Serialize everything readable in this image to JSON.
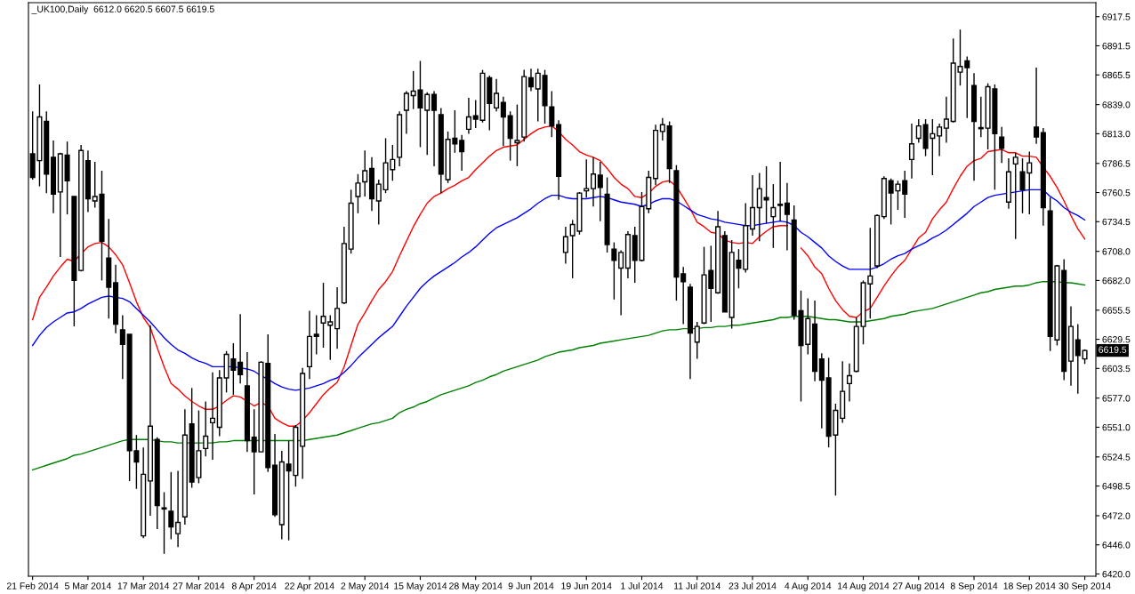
{
  "chart_data": {
    "type": "candlestick",
    "title": "_UK100,Daily  6612.0 6620.5 6607.5 6619.5",
    "categories": [
      "21 Feb 2014",
      null,
      null,
      null,
      null,
      null,
      null,
      null,
      "5 Mar 2014",
      null,
      null,
      null,
      null,
      null,
      null,
      null,
      "17 Mar 2014",
      null,
      null,
      null,
      null,
      null,
      null,
      null,
      "27 Mar 2014",
      null,
      null,
      null,
      null,
      null,
      null,
      null,
      "8 Apr 2014",
      null,
      null,
      null,
      null,
      null,
      null,
      null,
      "22 Apr 2014",
      null,
      null,
      null,
      null,
      null,
      null,
      null,
      "2 May 2014",
      null,
      null,
      null,
      null,
      null,
      null,
      null,
      "15 May 2014",
      null,
      null,
      null,
      null,
      null,
      null,
      null,
      "28 May 2014",
      null,
      null,
      null,
      null,
      null,
      null,
      null,
      "9 Jun 2014",
      null,
      null,
      null,
      null,
      null,
      null,
      null,
      "19 Jun 2014",
      null,
      null,
      null,
      null,
      null,
      null,
      null,
      "1 Jul 2014",
      null,
      null,
      null,
      null,
      null,
      null,
      null,
      "11 Jul 2014",
      null,
      null,
      null,
      null,
      null,
      null,
      null,
      "23 Jul 2014",
      null,
      null,
      null,
      null,
      null,
      null,
      null,
      "4 Aug 2014",
      null,
      null,
      null,
      null,
      null,
      null,
      null,
      "14 Aug 2014",
      null,
      null,
      null,
      null,
      null,
      null,
      null,
      "27 Aug 2014",
      null,
      null,
      null,
      null,
      null,
      null,
      null,
      "8 Sep 2014",
      null,
      null,
      null,
      null,
      null,
      null,
      null,
      "18 Sep 2014",
      null,
      null,
      null,
      null,
      null,
      null,
      null,
      "30 Sep 2014"
    ],
    "ohlc": [
      [
        6795,
        6833,
        6772,
        6774
      ],
      [
        6789,
        6857,
        6766,
        6828
      ],
      [
        6824,
        6833,
        6760,
        6777
      ],
      [
        6792,
        6807,
        6742,
        6759
      ],
      [
        6761,
        6796,
        6703,
        6795
      ],
      [
        6794,
        6806,
        6741,
        6771
      ],
      [
        6757,
        6757,
        6641,
        6682
      ],
      [
        6691,
        6803,
        6690,
        6798
      ],
      [
        6789,
        6798,
        6743,
        6755
      ],
      [
        6753,
        6788,
        6747,
        6757
      ],
      [
        6759,
        6780,
        6682,
        6717
      ],
      [
        6702,
        6737,
        6648,
        6676
      ],
      [
        6680,
        6696,
        6635,
        6643
      ],
      [
        6638,
        6651,
        6594,
        6625
      ],
      [
        6634,
        6634,
        6503,
        6530
      ],
      [
        6530,
        6544,
        6496,
        6520
      ],
      [
        6454,
        6533,
        6452,
        6509
      ],
      [
        6503,
        6642,
        6472,
        6552
      ],
      [
        6540,
        6542,
        6460,
        6481
      ],
      [
        6478,
        6493,
        6438,
        6479
      ],
      [
        6476,
        6511,
        6451,
        6462
      ],
      [
        6456,
        6512,
        6444,
        6466
      ],
      [
        6471,
        6567,
        6464,
        6544
      ],
      [
        6554,
        6586,
        6497,
        6502
      ],
      [
        6506,
        6566,
        6501,
        6530
      ],
      [
        6532,
        6574,
        6525,
        6543
      ],
      [
        6555,
        6600,
        6522,
        6559
      ],
      [
        6551,
        6602,
        6543,
        6595
      ],
      [
        6595,
        6619,
        6582,
        6616
      ],
      [
        6612,
        6626,
        6580,
        6602
      ],
      [
        6609,
        6652,
        6590,
        6598
      ],
      [
        6588,
        6618,
        6529,
        6539
      ],
      [
        6542,
        6567,
        6491,
        6529
      ],
      [
        6529,
        6610,
        6529,
        6609
      ],
      [
        6608,
        6634,
        6511,
        6515
      ],
      [
        6517,
        6545,
        6471,
        6473
      ],
      [
        6464,
        6530,
        6451,
        6520
      ],
      [
        6518,
        6539,
        6450,
        6512
      ],
      [
        6508,
        6553,
        6498,
        6551
      ],
      [
        6534,
        6604,
        6505,
        6599
      ],
      [
        6605,
        6655,
        6594,
        6632
      ],
      [
        6634,
        6651,
        6616,
        6632
      ],
      [
        6644,
        6680,
        6622,
        6650
      ],
      [
        6642,
        6651,
        6611,
        6645
      ],
      [
        6639,
        6676,
        6621,
        6657
      ],
      [
        6662,
        6730,
        6661,
        6715
      ],
      [
        6710,
        6763,
        6706,
        6751
      ],
      [
        6757,
        6777,
        6742,
        6769
      ],
      [
        6770,
        6798,
        6757,
        6780
      ],
      [
        6782,
        6792,
        6744,
        6755
      ],
      [
        6753,
        6772,
        6732,
        6768
      ],
      [
        6763,
        6809,
        6760,
        6787
      ],
      [
        6781,
        6803,
        6771,
        6790
      ],
      [
        6792,
        6833,
        6784,
        6830
      ],
      [
        6834,
        6851,
        6813,
        6849
      ],
      [
        6847,
        6869,
        6835,
        6851
      ],
      [
        6852,
        6878,
        6801,
        6836
      ],
      [
        6834,
        6850,
        6794,
        6848
      ],
      [
        6848,
        6851,
        6784,
        6834
      ],
      [
        6830,
        6836,
        6760,
        6777
      ],
      [
        6772,
        6815,
        6769,
        6808
      ],
      [
        6809,
        6834,
        6796,
        6804
      ],
      [
        6807,
        6812,
        6780,
        6797
      ],
      [
        6817,
        6845,
        6813,
        6828
      ],
      [
        6829,
        6843,
        6818,
        6826
      ],
      [
        6825,
        6870,
        6823,
        6867
      ],
      [
        6863,
        6865,
        6816,
        6840
      ],
      [
        6836,
        6862,
        6833,
        6849
      ],
      [
        6841,
        6846,
        6802,
        6828
      ],
      [
        6829,
        6833,
        6789,
        6809
      ],
      [
        6805,
        6839,
        6784,
        6807
      ],
      [
        6810,
        6870,
        6806,
        6864
      ],
      [
        6863,
        6871,
        6851,
        6855
      ],
      [
        6853,
        6871,
        6824,
        6867
      ],
      [
        6865,
        6870,
        6822,
        6838
      ],
      [
        6837,
        6851,
        6810,
        6820
      ],
      [
        6821,
        6825,
        6754,
        6775
      ],
      [
        6707,
        6730,
        6697,
        6721
      ],
      [
        6722,
        6736,
        6684,
        6732
      ],
      [
        6726,
        6761,
        6723,
        6760
      ],
      [
        6762,
        6790,
        6756,
        6764
      ],
      [
        6764,
        6792,
        6748,
        6777
      ],
      [
        6776,
        6788,
        6735,
        6765
      ],
      [
        6759,
        6774,
        6707,
        6714
      ],
      [
        6710,
        6716,
        6665,
        6700
      ],
      [
        6693,
        6709,
        6651,
        6707
      ],
      [
        6693,
        6726,
        6684,
        6723
      ],
      [
        6722,
        6730,
        6680,
        6700
      ],
      [
        6700,
        6761,
        6699,
        6748
      ],
      [
        6746,
        6780,
        6742,
        6774
      ],
      [
        6773,
        6821,
        6767,
        6816
      ],
      [
        6815,
        6827,
        6807,
        6821
      ],
      [
        6820,
        6824,
        6769,
        6782
      ],
      [
        6780,
        6785,
        6664,
        6685
      ],
      [
        6688,
        6694,
        6643,
        6681
      ],
      [
        6676,
        6679,
        6594,
        6635
      ],
      [
        6627,
        6645,
        6612,
        6641
      ],
      [
        6644,
        6712,
        6643,
        6687
      ],
      [
        6691,
        6713,
        6645,
        6675
      ],
      [
        6671,
        6744,
        6670,
        6730
      ],
      [
        6722,
        6726,
        6654,
        6654
      ],
      [
        6649,
        6718,
        6639,
        6707
      ],
      [
        6700,
        6710,
        6675,
        6693
      ],
      [
        6692,
        6751,
        6689,
        6731
      ],
      [
        6728,
        6776,
        6722,
        6747
      ],
      [
        6747,
        6778,
        6717,
        6764
      ],
      [
        6756,
        6784,
        6733,
        6754
      ],
      [
        6739,
        6768,
        6711,
        6747
      ],
      [
        6750,
        6788,
        6735,
        6749
      ],
      [
        6751,
        6769,
        6709,
        6741
      ],
      [
        6736,
        6749,
        6647,
        6651
      ],
      [
        6655,
        6673,
        6574,
        6624
      ],
      [
        6625,
        6666,
        6616,
        6648
      ],
      [
        6643,
        6664,
        6592,
        6601
      ],
      [
        6612,
        6617,
        6550,
        6593
      ],
      [
        6595,
        6613,
        6533,
        6543
      ],
      [
        6544,
        6572,
        6490,
        6566
      ],
      [
        6559,
        6610,
        6555,
        6583
      ],
      [
        6590,
        6608,
        6574,
        6597
      ],
      [
        6601,
        6649,
        6600,
        6641
      ],
      [
        6641,
        6682,
        6625,
        6680
      ],
      [
        6679,
        6729,
        6648,
        6686
      ],
      [
        6695,
        6741,
        6693,
        6740
      ],
      [
        6739,
        6775,
        6737,
        6773
      ],
      [
        6771,
        6773,
        6732,
        6760
      ],
      [
        6762,
        6771,
        6745,
        6768
      ],
      [
        6771,
        6780,
        6738,
        6759
      ],
      [
        6790,
        6822,
        6773,
        6804
      ],
      [
        6809,
        6826,
        6805,
        6820
      ],
      [
        6821,
        6826,
        6793,
        6800
      ],
      [
        6809,
        6826,
        6776,
        6813
      ],
      [
        6811,
        6822,
        6793,
        6819
      ],
      [
        6818,
        6846,
        6805,
        6826
      ],
      [
        6824,
        6898,
        6823,
        6876
      ],
      [
        6868,
        6906,
        6856,
        6873
      ],
      [
        6878,
        6882,
        6827,
        6872
      ],
      [
        6856,
        6867,
        6771,
        6824
      ],
      [
        6817.5,
        6846,
        6810,
        6818.5
      ],
      [
        6818,
        6858,
        6799,
        6855
      ],
      [
        6853,
        6857,
        6763,
        6813
      ],
      [
        6810,
        6819,
        6787,
        6800
      ],
      [
        6752,
        6791,
        6746,
        6779
      ],
      [
        6786,
        6796,
        6719,
        6792
      ],
      [
        6779,
        6791,
        6742,
        6763
      ],
      [
        6778,
        6797,
        6741,
        6787
      ],
      [
        6819,
        6872,
        6804,
        6810
      ],
      [
        6814,
        6818,
        6731,
        6747
      ],
      [
        6744,
        6756,
        6619,
        6632
      ],
      [
        6629,
        6696,
        6624,
        6695
      ],
      [
        6691,
        6701,
        6593,
        6601
      ],
      [
        6610,
        6659,
        6588,
        6641
      ],
      [
        6629,
        6643,
        6581,
        6615
      ],
      [
        6612.0,
        6620.5,
        6607.5,
        6619.5
      ]
    ],
    "series": [
      {
        "type": "line",
        "color": "#ff0000",
        "values": [
          6647,
          6667,
          6676,
          6686,
          6694,
          6701,
          6699,
          6706,
          6712,
          6715,
          6716,
          6712,
          6705,
          6696,
          6680,
          6663,
          6649,
          6640,
          6622,
          6605,
          6590,
          6585,
          6579,
          6574,
          6570,
          6567,
          6567,
          6570,
          6575,
          6579,
          6578,
          6574,
          6570,
          6573,
          6570,
          6559,
          6555,
          6552,
          6552,
          6557,
          6564,
          6572,
          6580,
          6586,
          6591,
          6605,
          6624,
          6643,
          6653,
          6664,
          6674,
          6681,
          6690,
          6704,
          6717,
          6730,
          6741,
          6751,
          6757,
          6760,
          6764,
          6767,
          6771,
          6774,
          6781,
          6787,
          6793,
          6798,
          6801,
          6802,
          6803,
          6808,
          6813,
          6817,
          6819,
          6820,
          6815,
          6808,
          6803,
          6797,
          6794,
          6792,
          6789,
          6782,
          6774,
          6768,
          6764,
          6757,
          6756,
          6760,
          6766,
          6770,
          6771,
          6766,
          6756,
          6746,
          6734,
          6730,
          6725,
          6724,
          6718,
          6716,
          6715,
          6716,
          6715,
          6721,
          6726,
          6730,
          6731,
          6731,
          null,
          6711,
          6704,
          6694,
          6688,
          6675,
          6664,
          6656,
          6650,
          6649,
          6654,
          6657,
          6667,
          6677,
          6686,
          6694,
          6700,
          6710,
          6720,
          6725,
          6737,
          6745,
          6752,
          6764,
          6775,
          6784,
          6789,
          6791,
          6797,
          6798,
          6799,
          6796,
          6796,
          6793,
          6793,
          6792,
          6783,
          6775,
          6765,
          6753,
          6740,
          6728,
          6719
        ]
      },
      {
        "type": "line",
        "color": "#0000ff",
        "values": [
          6624,
          6633,
          6640,
          6645,
          6649,
          6653,
          6654,
          6657,
          6661,
          6664,
          6667,
          6668,
          6667,
          6666,
          6663,
          6657,
          6651,
          6645,
          6638,
          6631,
          6625,
          6620,
          6617,
          6613,
          6610,
          6608,
          6605,
          6605,
          6605,
          6605,
          6604,
          6603,
          6601,
          6597,
          6594,
          6590,
          6587,
          6585,
          6584,
          6585,
          6586,
          6588,
          6590,
          6593,
          6595,
          6600,
          6606,
          6613,
          6619,
          6625,
          6631,
          6636,
          6641,
          6650,
          6659,
          6667,
          6675,
          6681,
          6686,
          6690,
          6694,
          6698,
          6703,
          6707,
          6712,
          6718,
          6724,
          6729,
          6732,
          6735,
          6738,
          6742,
          6746,
          6751,
          6755,
          6758,
          6758,
          6756,
          6755,
          6755,
          6755,
          6756,
          6757,
          6756,
          6754,
          6752,
          6751,
          6750,
          6748,
          6750,
          6753,
          6755,
          6755,
          6753,
          6749,
          6745,
          6741,
          6739,
          6737,
          6736,
          6734,
          6733,
          6732,
          6731,
          6731,
          6732,
          6733,
          6734,
          6735,
          6734,
          6731,
          6725,
          6721,
          6716,
          6711,
          6704,
          6699,
          6695,
          6692,
          6692,
          6692,
          6692,
          6694,
          6697,
          6701,
          6704,
          6706,
          6710,
          6713,
          6716,
          6720,
          6723,
          6727,
          6732,
          6737,
          6742,
          6748,
          6752,
          6756,
          6758,
          6759,
          6760,
          6761,
          6762,
          6763,
          6763,
          6763,
          6757,
          6753,
          6747,
          6743,
          6740,
          6736
        ]
      },
      {
        "type": "line",
        "color": "#008000",
        "values": [
          6513,
          6515,
          6517,
          6519,
          6521,
          6523,
          6526,
          6527,
          6529,
          6531,
          6533,
          6535,
          6537,
          6539,
          6540,
          6540,
          6540,
          6540,
          6539,
          6538,
          6538,
          6537,
          6537,
          6537,
          6537,
          6537,
          6537,
          6538,
          6538,
          6539,
          6539,
          6539,
          6539,
          6539,
          6539,
          6539,
          6539,
          6539,
          6539,
          6539,
          6540,
          6541,
          6542,
          6543,
          6544,
          6546,
          6548,
          6550,
          6552,
          6554,
          6555,
          6557,
          6559,
          6564,
          6567,
          6569,
          6572,
          6574,
          6577,
          6580,
          6582,
          6584,
          6586,
          6588,
          6591,
          6593,
          6596,
          6598,
          6601,
          6603,
          6605,
          6607,
          6609,
          6611,
          6614,
          6616,
          6618,
          6619,
          6620,
          6622,
          6623,
          6624,
          6626,
          6627,
          6628,
          6629,
          6630,
          6631,
          6632,
          6633,
          6635,
          6637,
          6638,
          6638,
          6639,
          6639,
          6639,
          6640,
          6640,
          6641,
          6641,
          6642,
          6642,
          6643,
          6644,
          6645,
          6646,
          6647,
          6649,
          6649,
          6650,
          6650,
          6650,
          6649,
          6648,
          6647,
          6647,
          6646,
          6645,
          6645,
          6645,
          6646,
          6647,
          6648,
          6650,
          6651,
          6652,
          6654,
          6655,
          6656,
          6657,
          6659,
          6661,
          6663,
          6665,
          6667,
          6669,
          6671,
          6672,
          6674,
          6675,
          6676,
          6677,
          6677,
          6678,
          6680,
          6681,
          6681,
          6681,
          6680,
          6680,
          6679,
          6678
        ]
      }
    ],
    "ylim": [
      6418,
      6930
    ],
    "yticks": [
      6917.5,
      6891.5,
      6865.5,
      {
        "value": 6839,
        "label": "6839.0"
      },
      {
        "value": 6813,
        "label": "6813.0"
      },
      6786.5,
      6760.5,
      6734.5,
      {
        "value": 6708,
        "label": "6708.0"
      },
      {
        "value": 6682,
        "label": "6682.0"
      },
      6655.5,
      6629.5,
      6603.5,
      {
        "value": 6577,
        "label": "6577.0"
      },
      {
        "value": 6551,
        "label": "6551.0"
      },
      6524.5,
      6498.5,
      {
        "value": 6472,
        "label": "6472.0"
      },
      {
        "value": 6446,
        "label": "6446.0"
      },
      {
        "value": 6420,
        "label": "6420.0"
      }
    ],
    "annotations": [
      {
        "text": "6619.5",
        "y": 6619.5
      }
    ],
    "grid": false,
    "legend": false
  }
}
